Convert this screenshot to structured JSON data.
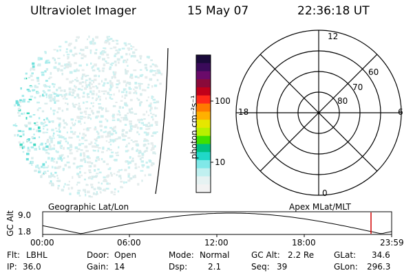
{
  "header": {
    "instrument": "Ultraviolet Imager",
    "date": "15 May 07",
    "time": "22:36:18 UT"
  },
  "colorbar": {
    "unit_label": "photon cm⁻²s⁻¹",
    "ticks": [
      "100",
      "10"
    ],
    "colors": [
      "#1a0a3a",
      "#3a0a5a",
      "#6a0a6a",
      "#8a0a3a",
      "#c0001a",
      "#ff2a1a",
      "#ff7a00",
      "#ffb000",
      "#e6e600",
      "#b8f000",
      "#40e000",
      "#00c080",
      "#20d8c8",
      "#80e8e8",
      "#c0f0f0",
      "#e6f2f2",
      "#f2f2f2"
    ]
  },
  "polar": {
    "mlt_labels": {
      "top": "12",
      "left": "18",
      "right": "6",
      "bottom": "0"
    },
    "lat_labels": [
      "60",
      "70",
      "80"
    ]
  },
  "map_labels": {
    "left": "Geographic Lat/Lon",
    "right": "Apex MLat/MLT"
  },
  "altitude_plot": {
    "ylabel": "GC Alt",
    "y_ticks": [
      "9.0",
      "1.8"
    ],
    "x_ticks": [
      "00:00",
      "06:00",
      "12:00",
      "18:00",
      "23:59"
    ],
    "marker_color": "#d00000"
  },
  "status": {
    "flt_label": "Flt:",
    "flt_value": "LBHL",
    "door_label": "Door:",
    "door_value": "Open",
    "mode_label": "Mode:",
    "mode_value": "Normal",
    "gcalt_label": "GC Alt:",
    "gcalt_value": "2.2 Re",
    "glat_label": "GLat:",
    "glat_value": "34.6",
    "ip_label": "IP:",
    "ip_value": "36.0",
    "gain_label": "Gain:",
    "gain_value": "14",
    "dsp_label": "Dsp:",
    "dsp_value": "2.1",
    "seq_label": "Seq:",
    "seq_value": "39",
    "glon_label": "GLon:",
    "glon_value": "296.3"
  }
}
